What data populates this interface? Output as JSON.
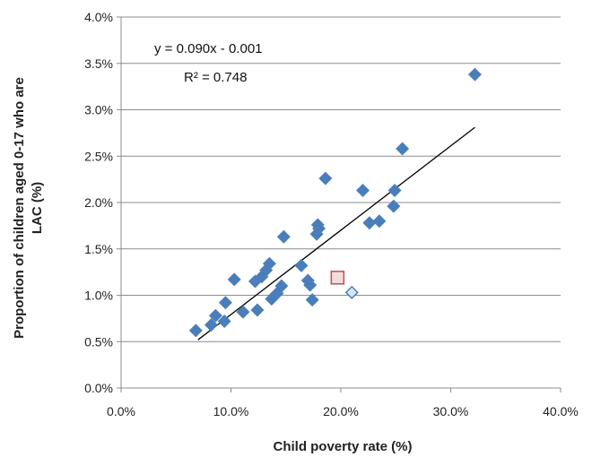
{
  "chart_data": {
    "type": "scatter",
    "title": "",
    "xlabel": "Child poverty rate (%)",
    "ylabel_lines": [
      "Proportion of children aged 0-17 who are",
      "LAC (%)"
    ],
    "xlim": [
      0,
      40
    ],
    "ylim": [
      0,
      4
    ],
    "x_ticks": [
      0,
      10,
      20,
      30,
      40
    ],
    "x_tick_labels": [
      "0.0%",
      "10.0%",
      "20.0%",
      "30.0%",
      "40.0%"
    ],
    "y_ticks": [
      0,
      0.5,
      1.0,
      1.5,
      2.0,
      2.5,
      3.0,
      3.5,
      4.0
    ],
    "y_tick_labels": [
      "0.0%",
      "0.5%",
      "1.0%",
      "1.5%",
      "2.0%",
      "2.5%",
      "3.0%",
      "3.5%",
      "4.0%"
    ],
    "grid": "horizontal",
    "annotations": {
      "equation": "y = 0.090x - 0.001",
      "r_squared": "R² = 0.748"
    },
    "trendline": {
      "x": [
        7.0,
        32.2
      ],
      "y": [
        0.52,
        2.81
      ]
    },
    "colors": {
      "points": "#4a7ebb",
      "highlight_square_fill": "#f2dcdb",
      "highlight_square_stroke": "#c0504d",
      "highlight_diamond_fill": "#dce6f2",
      "highlight_diamond_stroke": "#4a7ebb"
    },
    "points": [
      {
        "x": 6.8,
        "y": 0.62
      },
      {
        "x": 8.2,
        "y": 0.68
      },
      {
        "x": 8.6,
        "y": 0.78
      },
      {
        "x": 9.4,
        "y": 0.72
      },
      {
        "x": 9.5,
        "y": 0.92
      },
      {
        "x": 10.3,
        "y": 1.17
      },
      {
        "x": 11.1,
        "y": 0.82
      },
      {
        "x": 12.2,
        "y": 1.15
      },
      {
        "x": 12.4,
        "y": 0.84
      },
      {
        "x": 12.8,
        "y": 1.2
      },
      {
        "x": 13.2,
        "y": 1.27
      },
      {
        "x": 13.5,
        "y": 1.34
      },
      {
        "x": 13.7,
        "y": 0.96
      },
      {
        "x": 14.2,
        "y": 1.02
      },
      {
        "x": 14.6,
        "y": 1.1
      },
      {
        "x": 14.8,
        "y": 1.63
      },
      {
        "x": 16.4,
        "y": 1.32
      },
      {
        "x": 17.0,
        "y": 1.16
      },
      {
        "x": 17.2,
        "y": 1.11
      },
      {
        "x": 17.4,
        "y": 0.95
      },
      {
        "x": 17.8,
        "y": 1.66
      },
      {
        "x": 17.9,
        "y": 1.76
      },
      {
        "x": 18.0,
        "y": 1.72
      },
      {
        "x": 18.6,
        "y": 2.26
      },
      {
        "x": 22.0,
        "y": 2.13
      },
      {
        "x": 22.6,
        "y": 1.78
      },
      {
        "x": 23.5,
        "y": 1.8
      },
      {
        "x": 24.8,
        "y": 1.96
      },
      {
        "x": 24.9,
        "y": 2.13
      },
      {
        "x": 25.6,
        "y": 2.58
      },
      {
        "x": 32.2,
        "y": 3.38
      }
    ],
    "highlight_points": [
      {
        "x": 19.7,
        "y": 1.19,
        "marker": "square"
      },
      {
        "x": 21.0,
        "y": 1.03,
        "marker": "diamond"
      }
    ]
  }
}
